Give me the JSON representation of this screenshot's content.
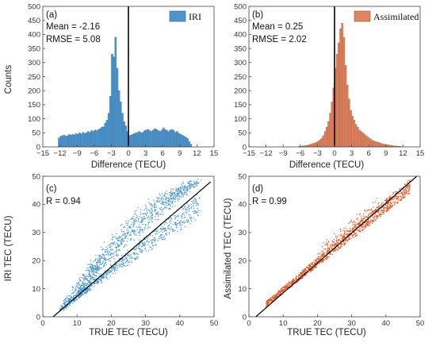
{
  "chart_data": [
    {
      "panel_label": "(a)",
      "type": "histogram",
      "legend": "IRI",
      "color": "#4f95cc",
      "stats": [
        "Mean = -2.16",
        "RMSE = 5.08"
      ],
      "xlabel": "Difference (TECU)",
      "ylabel": "Counts",
      "xlim": [
        -15,
        15
      ],
      "ylim": [
        0,
        500
      ],
      "xticks": [
        -15,
        -12,
        -9,
        -6,
        -3,
        0,
        3,
        6,
        9,
        12,
        15
      ],
      "yticks": [
        0,
        50,
        100,
        150,
        200,
        250,
        300,
        350,
        400,
        450,
        500
      ],
      "bin_width": 0.3,
      "bins_start": -12.3,
      "counts": [
        32,
        38,
        40,
        42,
        38,
        40,
        44,
        42,
        45,
        43,
        48,
        45,
        50,
        46,
        52,
        48,
        50,
        55,
        52,
        58,
        55,
        60,
        58,
        62,
        65,
        70,
        72,
        85,
        95,
        120,
        180,
        330,
        320,
        390,
        280,
        200,
        160,
        120,
        90,
        75,
        55,
        40,
        42,
        45,
        48,
        50,
        52,
        55,
        50,
        52,
        58,
        60,
        62,
        58,
        55,
        60,
        65,
        62,
        58,
        55,
        60,
        68,
        62,
        58,
        55,
        60,
        62,
        58,
        52,
        55,
        48,
        45,
        42,
        38,
        35,
        30,
        20,
        10
      ],
      "vline_x": 0
    },
    {
      "panel_label": "(b)",
      "type": "histogram",
      "legend": "Assimilated",
      "color": "#df8563",
      "stats": [
        "Mean = 0.25",
        "RMSE = 2.02"
      ],
      "xlabel": "Difference (TECU)",
      "ylabel": "",
      "xlim": [
        -15,
        15
      ],
      "ylim": [
        0,
        500
      ],
      "xticks": [
        -15,
        -12,
        -9,
        -6,
        -3,
        0,
        3,
        6,
        9,
        12,
        15
      ],
      "yticks": [
        0,
        50,
        100,
        150,
        200,
        250,
        300,
        350,
        400,
        450,
        500
      ],
      "bin_width": 0.3,
      "bins_start": -6.3,
      "counts": [
        2,
        3,
        3,
        4,
        5,
        6,
        8,
        10,
        12,
        14,
        16,
        20,
        25,
        30,
        40,
        55,
        70,
        90,
        120,
        160,
        210,
        280,
        330,
        370,
        420,
        440,
        390,
        290,
        220,
        170,
        130,
        110,
        95,
        80,
        70,
        60,
        55,
        50,
        45,
        40,
        35,
        30,
        26,
        22,
        20,
        18,
        16,
        14,
        12,
        10,
        9,
        8,
        7,
        6,
        5,
        4,
        3,
        3,
        2,
        2
      ],
      "vline_x": 0
    },
    {
      "panel_label": "(c)",
      "type": "scatter",
      "color": "#3d8ec9",
      "stats": [
        "R = 0.94"
      ],
      "xlabel": "TRUE TEC (TECU)",
      "ylabel": "IRI TEC (TECU)",
      "xlim": [
        0,
        50
      ],
      "ylim": [
        0,
        50
      ],
      "xticks": [
        0,
        10,
        20,
        30,
        40,
        50
      ],
      "yticks": [
        0,
        10,
        20,
        30,
        40,
        50
      ],
      "fit_line": [
        [
          3,
          0
        ],
        [
          49,
          48
        ]
      ],
      "pattern": "loops: lower branch roughly y = x - 2 to x - 8 from (5,3) to (46,38); upper branch rising steeply from (10,10) to (44,49)"
    },
    {
      "panel_label": "(d)",
      "type": "scatter",
      "color": "#d9541c",
      "stats": [
        "R = 0.99"
      ],
      "xlabel": "TRUE TEC (TECU)",
      "ylabel": "Assimilated TEC (TECU)",
      "xlim": [
        0,
        50
      ],
      "ylim": [
        0,
        50
      ],
      "xticks": [
        0,
        10,
        20,
        30,
        40,
        50
      ],
      "yticks": [
        0,
        10,
        20,
        30,
        40,
        50
      ],
      "fit_line": [
        [
          2,
          0
        ],
        [
          49,
          50
        ]
      ],
      "pattern": "tight band around y = x from (5,4) to (47,46)"
    }
  ]
}
